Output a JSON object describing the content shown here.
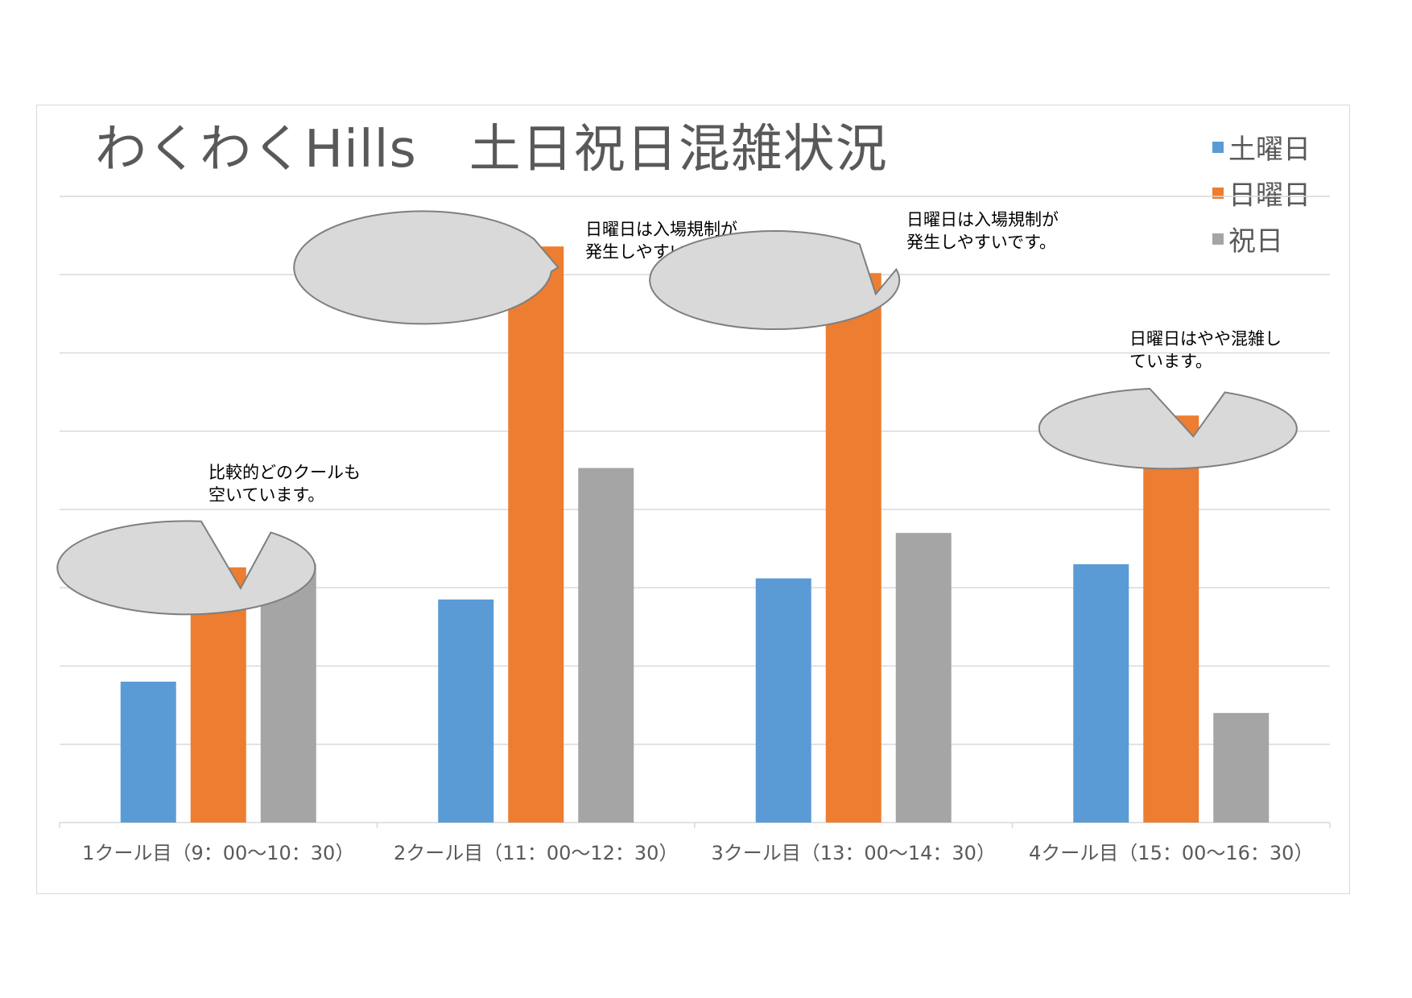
{
  "chart_data": {
    "type": "bar",
    "title": "わくわくHills　土日祝日混雑状況",
    "categories": [
      "1クール目（9：00～10：30）",
      "2クール目（11：00～12：30）",
      "3クール目（13：00～14：30）",
      "4クール目（15：00～16：30）"
    ],
    "series": [
      {
        "name": "土曜日",
        "color": "#5b9bd5",
        "values": [
          1.8,
          2.85,
          3.12,
          3.3
        ]
      },
      {
        "name": "日曜日",
        "color": "#ed7d31",
        "values": [
          3.26,
          7.36,
          7.02,
          5.2
        ]
      },
      {
        "name": "祝日",
        "color": "#a5a5a5",
        "values": [
          3.3,
          4.53,
          3.7,
          1.4
        ]
      }
    ],
    "ylim": [
      0,
      8
    ],
    "grid": true,
    "legend_position": "top-right",
    "annotations": [
      {
        "category": 0,
        "series": 1,
        "text_lines": [
          "比較的どのクールも",
          "空いています。"
        ]
      },
      {
        "category": 1,
        "series": 1,
        "text_lines": [
          "日曜日は入場規制が",
          "発生しやすいです。"
        ]
      },
      {
        "category": 2,
        "series": 1,
        "text_lines": [
          "日曜日は入場規制が",
          "発生しやすいです。"
        ]
      },
      {
        "category": 3,
        "series": 1,
        "text_lines": [
          "日曜日はやや混雑し",
          "ています。"
        ]
      }
    ]
  }
}
